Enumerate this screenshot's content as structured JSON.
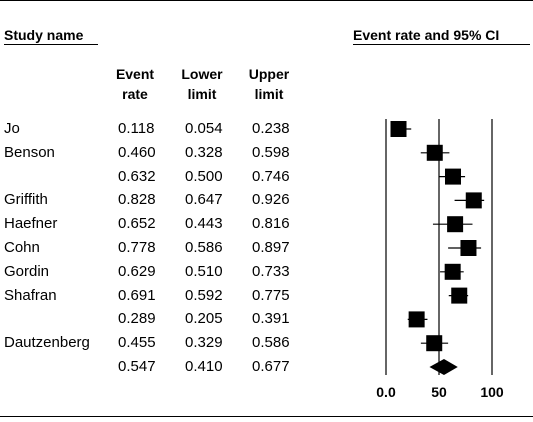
{
  "header": {
    "study_name": "Study name",
    "chart_title": "Event rate and 95% CI",
    "col_event": [
      "Event",
      "rate"
    ],
    "col_lower": [
      "Lower",
      "limit"
    ],
    "col_upper": [
      "Upper",
      "limit"
    ]
  },
  "chart_data": {
    "type": "forest",
    "title": "Event rate and 95% CI",
    "columns": [
      "Event rate",
      "Lower limit",
      "Upper limit"
    ],
    "xlim": [
      0,
      100
    ],
    "xticks": [
      "0.0",
      "50",
      "100"
    ],
    "reference_line": 50,
    "rows": [
      {
        "study": "Jo",
        "rate": "0.118",
        "lower": "0.054",
        "upper": "0.238",
        "est": 0.118,
        "lo": 0.054,
        "hi": 0.238
      },
      {
        "study": "Benson",
        "rate": "0.460",
        "lower": "0.328",
        "upper": "0.598",
        "est": 0.46,
        "lo": 0.328,
        "hi": 0.598
      },
      {
        "study": "",
        "rate": "0.632",
        "lower": "0.500",
        "upper": "0.746",
        "est": 0.632,
        "lo": 0.5,
        "hi": 0.746
      },
      {
        "study": "Griffith",
        "rate": "0.828",
        "lower": "0.647",
        "upper": "0.926",
        "est": 0.828,
        "lo": 0.647,
        "hi": 0.926
      },
      {
        "study": "Haefner",
        "rate": "0.652",
        "lower": "0.443",
        "upper": "0.816",
        "est": 0.652,
        "lo": 0.443,
        "hi": 0.816
      },
      {
        "study": "Cohn",
        "rate": "0.778",
        "lower": "0.586",
        "upper": "0.897",
        "est": 0.778,
        "lo": 0.586,
        "hi": 0.897
      },
      {
        "study": "Gordin",
        "rate": "0.629",
        "lower": "0.510",
        "upper": "0.733",
        "est": 0.629,
        "lo": 0.51,
        "hi": 0.733
      },
      {
        "study": "Shafran",
        "rate": "0.691",
        "lower": "0.592",
        "upper": "0.775",
        "est": 0.691,
        "lo": 0.592,
        "hi": 0.775
      },
      {
        "study": "",
        "rate": "0.289",
        "lower": "0.205",
        "upper": "0.391",
        "est": 0.289,
        "lo": 0.205,
        "hi": 0.391
      },
      {
        "study": "Dautzenberg",
        "rate": "0.455",
        "lower": "0.329",
        "upper": "0.586",
        "est": 0.455,
        "lo": 0.329,
        "hi": 0.586
      }
    ],
    "summary": {
      "rate": "0.547",
      "lower": "0.410",
      "upper": "0.677",
      "est": 0.547,
      "lo": 0.41,
      "hi": 0.677
    }
  }
}
